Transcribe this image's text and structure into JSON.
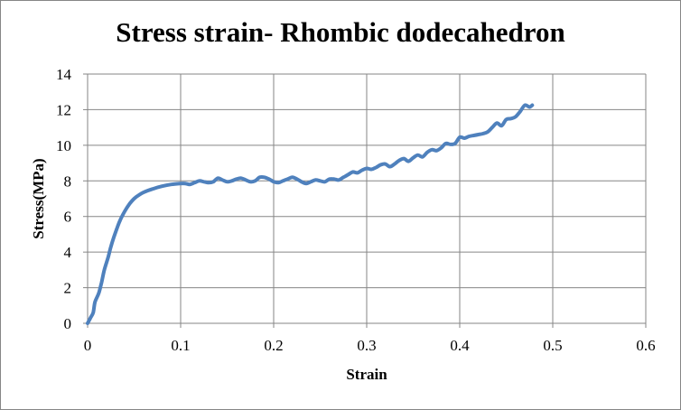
{
  "chart_data": {
    "type": "line",
    "title": "Stress strain- Rhombic dodecahedron",
    "xlabel": "Strain",
    "ylabel": "Stress(MPa)",
    "xlim": [
      0,
      0.6
    ],
    "ylim": [
      0,
      14
    ],
    "x_ticks": [
      "0",
      "0.1",
      "0.2",
      "0.3",
      "0.4",
      "0.5",
      "0.6"
    ],
    "y_ticks": [
      "0",
      "2",
      "4",
      "6",
      "8",
      "10",
      "12",
      "14"
    ],
    "grid": true,
    "legend": "none",
    "series": [
      {
        "color": "#4f81bd",
        "x": [
          0,
          0.003,
          0.006,
          0.008,
          0.012,
          0.015,
          0.018,
          0.022,
          0.025,
          0.028,
          0.032,
          0.035,
          0.04,
          0.045,
          0.05,
          0.055,
          0.06,
          0.07,
          0.08,
          0.09,
          0.1,
          0.105,
          0.11,
          0.115,
          0.12,
          0.125,
          0.13,
          0.135,
          0.14,
          0.145,
          0.15,
          0.155,
          0.16,
          0.165,
          0.17,
          0.175,
          0.18,
          0.185,
          0.19,
          0.195,
          0.2,
          0.205,
          0.21,
          0.215,
          0.22,
          0.225,
          0.23,
          0.235,
          0.24,
          0.245,
          0.25,
          0.255,
          0.26,
          0.265,
          0.27,
          0.275,
          0.28,
          0.285,
          0.29,
          0.295,
          0.3,
          0.305,
          0.31,
          0.315,
          0.32,
          0.325,
          0.33,
          0.335,
          0.34,
          0.345,
          0.35,
          0.355,
          0.36,
          0.365,
          0.37,
          0.375,
          0.38,
          0.385,
          0.39,
          0.395,
          0.4,
          0.405,
          0.41,
          0.415,
          0.42,
          0.425,
          0.43,
          0.435,
          0.44,
          0.445,
          0.45,
          0.455,
          0.46,
          0.465,
          0.47,
          0.475,
          0.478
        ],
        "y": [
          0,
          0.3,
          0.6,
          1.2,
          1.7,
          2.3,
          3.0,
          3.7,
          4.3,
          4.8,
          5.4,
          5.8,
          6.3,
          6.7,
          7.0,
          7.2,
          7.35,
          7.55,
          7.7,
          7.8,
          7.85,
          7.85,
          7.8,
          7.9,
          8.0,
          7.95,
          7.9,
          7.95,
          8.15,
          8.05,
          7.95,
          8.0,
          8.1,
          8.15,
          8.05,
          7.95,
          8.0,
          8.2,
          8.2,
          8.1,
          7.95,
          7.9,
          8.0,
          8.1,
          8.2,
          8.1,
          7.95,
          7.85,
          7.95,
          8.05,
          8.0,
          7.95,
          8.1,
          8.1,
          8.05,
          8.2,
          8.35,
          8.5,
          8.45,
          8.6,
          8.7,
          8.65,
          8.75,
          8.9,
          8.95,
          8.8,
          8.95,
          9.15,
          9.25,
          9.1,
          9.3,
          9.45,
          9.35,
          9.6,
          9.75,
          9.7,
          9.85,
          10.1,
          10.05,
          10.1,
          10.45,
          10.4,
          10.5,
          10.55,
          10.6,
          10.65,
          10.75,
          11.0,
          11.25,
          11.1,
          11.45,
          11.5,
          11.6,
          11.9,
          12.25,
          12.15,
          12.25
        ]
      }
    ]
  }
}
